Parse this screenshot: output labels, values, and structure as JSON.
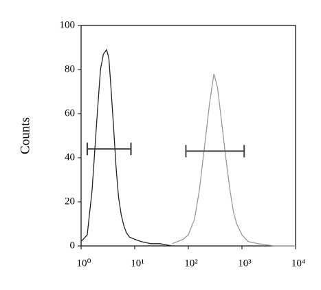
{
  "chart_data": {
    "type": "line",
    "y_label": "Counts",
    "log_x": true,
    "xlim": [
      1,
      10000
    ],
    "xticks": [
      {
        "value": 1,
        "label": "10⁰"
      },
      {
        "value": 10,
        "label": "10¹"
      },
      {
        "value": 100,
        "label": "10²"
      },
      {
        "value": 1000,
        "label": "10³"
      },
      {
        "value": 10000,
        "label": "10⁴"
      }
    ],
    "ylim": [
      0,
      100
    ],
    "yticks": [
      0,
      20,
      40,
      60,
      80,
      100
    ],
    "series": [
      {
        "color": "#222222",
        "x": [
          1,
          1.3,
          1.6,
          2,
          2.3,
          2.6,
          3,
          3.3,
          3.6,
          4,
          4.5,
          5,
          5.6,
          6.3,
          7,
          8,
          10,
          13,
          20,
          30,
          50
        ],
        "values": [
          2,
          5,
          25,
          60,
          80,
          87,
          89,
          85,
          72,
          55,
          35,
          22,
          14,
          9,
          6,
          4,
          3,
          2,
          1,
          1,
          0
        ]
      },
      {
        "color": "#999999",
        "x": [
          50,
          80,
          100,
          130,
          160,
          200,
          250,
          300,
          350,
          400,
          500,
          600,
          700,
          800,
          1000,
          1300,
          2000,
          4000,
          10000
        ],
        "values": [
          1,
          3,
          5,
          12,
          25,
          45,
          65,
          78,
          72,
          60,
          40,
          25,
          15,
          10,
          5,
          2,
          1,
          0,
          0
        ]
      }
    ],
    "gates": [
      {
        "x": [
          1.3,
          8.5
        ],
        "y": 44,
        "color": "#333333"
      },
      {
        "x": [
          90,
          1100
        ],
        "y": 43,
        "color": "#444444"
      }
    ]
  }
}
